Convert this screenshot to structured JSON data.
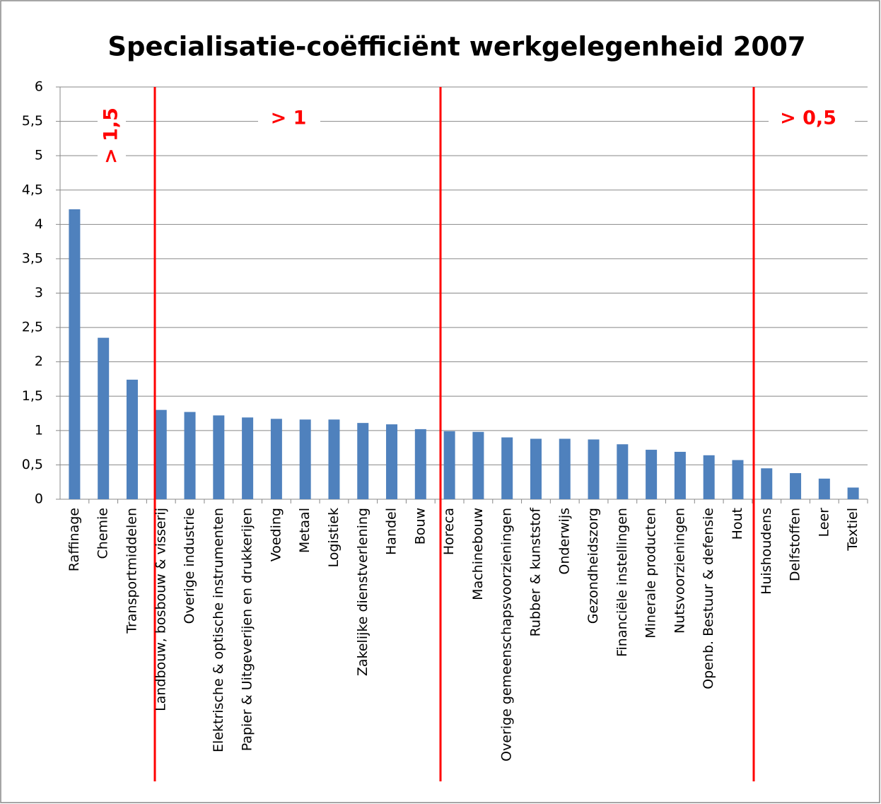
{
  "chart_data": {
    "type": "bar",
    "title": "Specialisatie-coëfficiënt werkgelegenheid 2007",
    "categories": [
      "Raffinage",
      "Chemie",
      "Transportmiddelen",
      "Landbouw, bosbouw & visserij",
      "Overige industrie",
      "Elektrische & optische instrumenten",
      "Papier & Uitgeverijen en drukkerijen",
      "Voeding",
      "Metaal",
      "Logistiek",
      "Zakelijke dienstverlening",
      "Handel",
      "Bouw",
      "Horeca",
      "Machinebouw",
      "Overige gemeenschapsvoorzieningen",
      "Rubber & kunststof",
      "Onderwijs",
      "Gezondheidszorg",
      "Financiële instellingen",
      "Minerale producten",
      "Nutsvoorzieningen",
      "Openb. Bestuur & defensie",
      "Hout",
      "Huishoudens",
      "Delfstoffen",
      "Leer",
      "Textiel"
    ],
    "values": [
      4.22,
      2.35,
      1.74,
      1.3,
      1.27,
      1.22,
      1.19,
      1.17,
      1.16,
      1.16,
      1.11,
      1.09,
      1.02,
      0.99,
      0.98,
      0.9,
      0.88,
      0.88,
      0.87,
      0.8,
      0.72,
      0.69,
      0.64,
      0.57,
      0.45,
      0.38,
      0.3,
      0.17
    ],
    "color": "#4f81bd",
    "ylim": [
      0,
      6
    ],
    "yticks": [
      0,
      {
        "value": 0.5,
        "label": "0,5"
      },
      1,
      {
        "value": 1.5,
        "label": "1,5"
      },
      2,
      {
        "value": 2.5,
        "label": "2,5"
      },
      3,
      {
        "value": 3.5,
        "label": "3,5"
      },
      4,
      {
        "value": 4.5,
        "label": "4,5"
      },
      5,
      {
        "value": 5.5,
        "label": "5,5"
      },
      6
    ],
    "grid": true,
    "annotations": [
      "> 1,5",
      "> 1",
      "> 0,5"
    ]
  }
}
